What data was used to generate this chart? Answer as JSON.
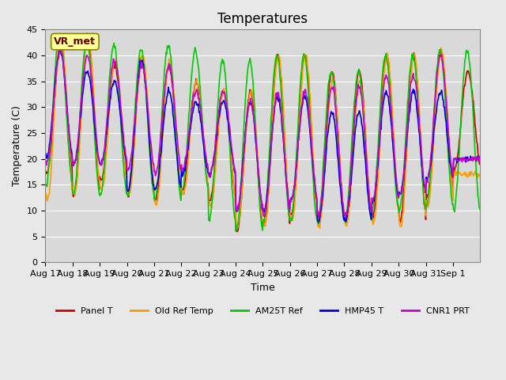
{
  "title": "Temperatures",
  "xlabel": "Time",
  "ylabel": "Temperature (C)",
  "ylim": [
    0,
    45
  ],
  "yticks": [
    0,
    5,
    10,
    15,
    20,
    25,
    30,
    35,
    40,
    45
  ],
  "series_colors": {
    "Panel T": "#cc0000",
    "Old Ref Temp": "#ff9900",
    "AM25T Ref": "#00cc00",
    "HMP45 T": "#0000dd",
    "CNR1 PRT": "#cc00cc"
  },
  "series_names": [
    "Panel T",
    "Old Ref Temp",
    "AM25T Ref",
    "HMP45 T",
    "CNR1 PRT"
  ],
  "fig_bg_color": "#e8e8e8",
  "plot_bg_color": "#d9d9d9",
  "grid_color": "#ffffff",
  "legend_text": "VR_met",
  "legend_box_color": "#ffff99",
  "legend_box_edge": "#888800",
  "xtick_labels": [
    "Aug 17",
    "Aug 18",
    "Aug 19",
    "Aug 20",
    "Aug 21",
    "Aug 22",
    "Aug 23",
    "Aug 24",
    "Aug 25",
    "Aug 26",
    "Aug 27",
    "Aug 28",
    "Aug 29",
    "Aug 30",
    "Aug 31",
    "Sep 1"
  ],
  "title_fontsize": 12,
  "axis_fontsize": 9,
  "tick_fontsize": 8,
  "peaks_panel": [
    41,
    44,
    38,
    40,
    38,
    35,
    33,
    33,
    40,
    40,
    37,
    37,
    40,
    40,
    41,
    37
  ],
  "troughs_panel": [
    17,
    13,
    16,
    13,
    12,
    14,
    12,
    6,
    7,
    9,
    8,
    8,
    9,
    8,
    13,
    18
  ],
  "peaks_old": [
    44,
    44,
    39,
    40,
    39,
    35,
    33,
    33,
    40,
    40,
    35,
    35,
    40,
    40,
    41,
    17
  ],
  "troughs_old": [
    12,
    13,
    14,
    13,
    11,
    13,
    11,
    7,
    7,
    8,
    7,
    7,
    8,
    7,
    11,
    17
  ],
  "peaks_am25": [
    44,
    43,
    42,
    41,
    42,
    41,
    39,
    39,
    40,
    40,
    37,
    37,
    40,
    40,
    41,
    41
  ],
  "troughs_am25": [
    15,
    13,
    13,
    13,
    12,
    14,
    8,
    6,
    8,
    8,
    8,
    8,
    10,
    10,
    11,
    10
  ],
  "peaks_hmp45": [
    41,
    37,
    35,
    39,
    33,
    31,
    31,
    31,
    32,
    32,
    29,
    29,
    33,
    33,
    33,
    20
  ],
  "troughs_hmp45": [
    20,
    19,
    19,
    14,
    14,
    17,
    17,
    10,
    10,
    12,
    8,
    8,
    12,
    13,
    16,
    20
  ],
  "peaks_cnr1": [
    41,
    40,
    39,
    38,
    38,
    33,
    33,
    31,
    33,
    33,
    34,
    34,
    36,
    36,
    40,
    20
  ],
  "troughs_cnr1": [
    19,
    19,
    19,
    18,
    17,
    18,
    17,
    10,
    9,
    12,
    9,
    9,
    12,
    13,
    16,
    20
  ]
}
